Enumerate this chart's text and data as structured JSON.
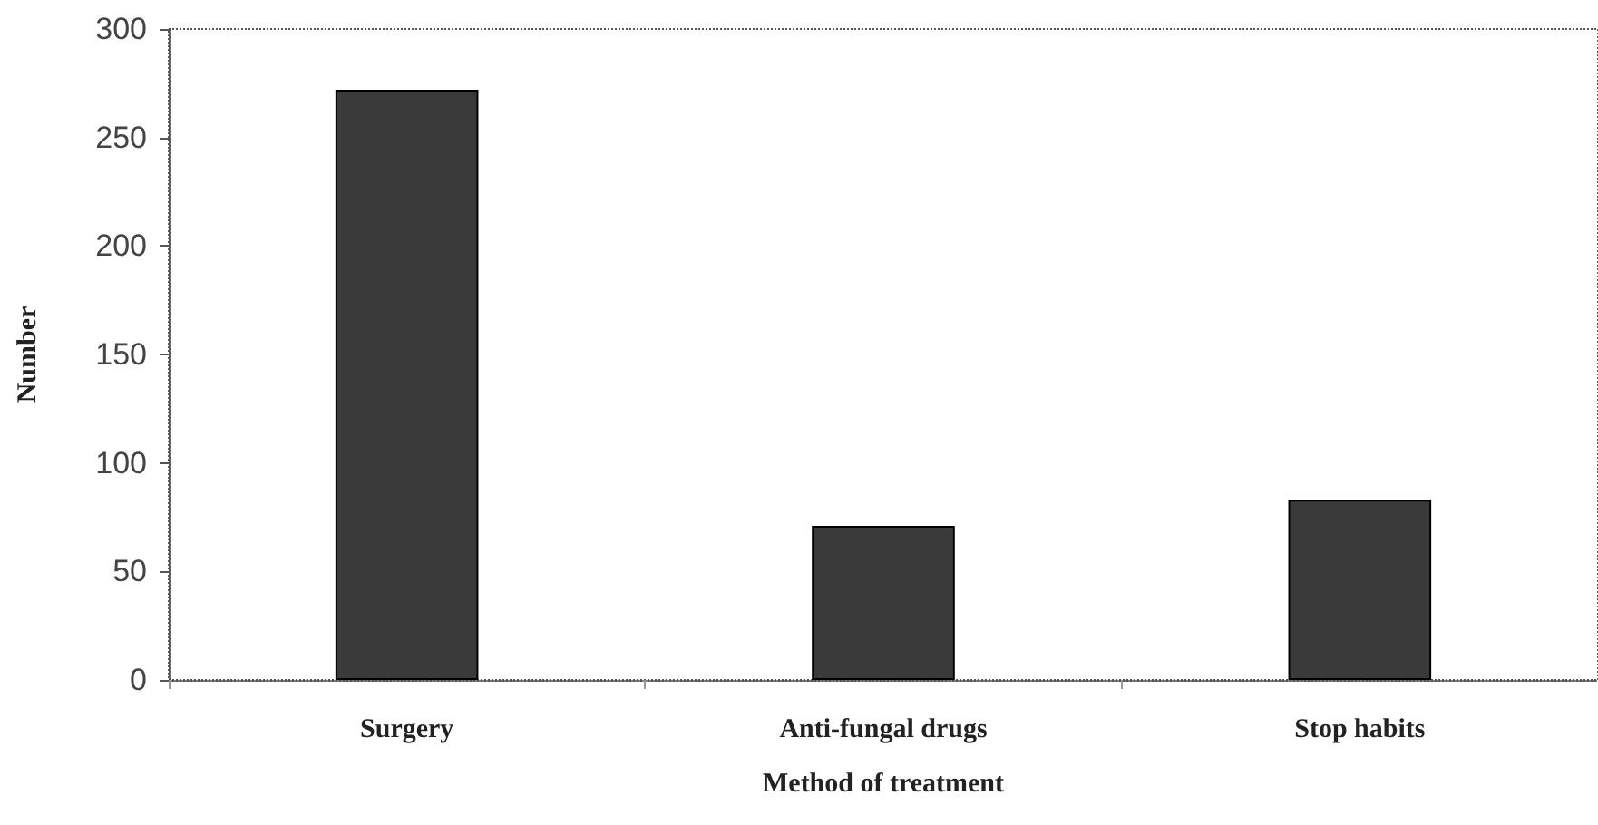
{
  "chart_data": {
    "type": "bar",
    "xlabel": "Method of treatment",
    "ylabel": "Number",
    "categories": [
      "Surgery",
      "Anti-fungal drugs",
      "Stop habits"
    ],
    "values": [
      272,
      71,
      83
    ],
    "color": "#3a3a3a",
    "ylim": [
      0,
      300
    ],
    "yticks": [
      0,
      50,
      100,
      150,
      200,
      250,
      300
    ],
    "grid": false
  }
}
